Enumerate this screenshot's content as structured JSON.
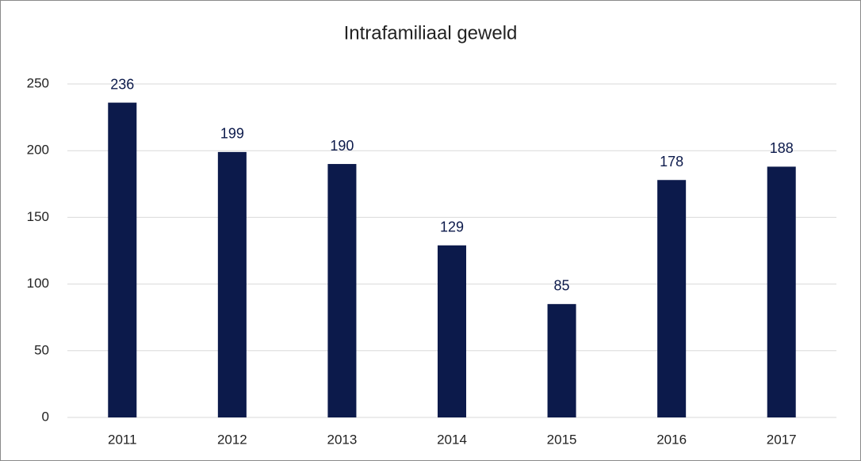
{
  "chart_data": {
    "type": "bar",
    "title": "Intrafamiliaal geweld",
    "categories": [
      "2011",
      "2012",
      "2013",
      "2014",
      "2015",
      "2016",
      "2017"
    ],
    "values": [
      236,
      199,
      190,
      129,
      85,
      178,
      188
    ],
    "color": "#0c1a4b",
    "ylim": [
      0,
      250
    ],
    "yticks": [
      0,
      50,
      100,
      150,
      200,
      250
    ],
    "grid": true
  }
}
